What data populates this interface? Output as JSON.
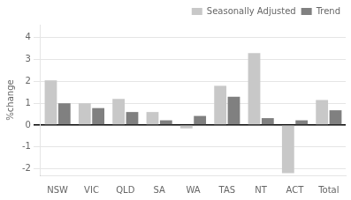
{
  "chart_data": {
    "type": "bar",
    "categories": [
      "NSW",
      "VIC",
      "QLD",
      "SA",
      "WA",
      "TAS",
      "NT",
      "ACT",
      "Total"
    ],
    "series": [
      {
        "name": "Seasonally Adjusted",
        "color": "#c8c8c8",
        "values": [
          2.05,
          1.0,
          1.2,
          0.6,
          -0.15,
          1.8,
          3.3,
          -2.2,
          1.15
        ]
      },
      {
        "name": "Trend",
        "color": "#808080",
        "values": [
          1.0,
          0.78,
          0.6,
          0.22,
          0.42,
          1.3,
          0.32,
          0.22,
          0.68
        ]
      }
    ],
    "ylabel": "%change",
    "ylim": [
      -2.3,
      4.6
    ],
    "yticks": [
      -2,
      -1,
      0,
      1,
      2,
      3,
      4
    ],
    "grid": true,
    "legend": "upper right"
  }
}
